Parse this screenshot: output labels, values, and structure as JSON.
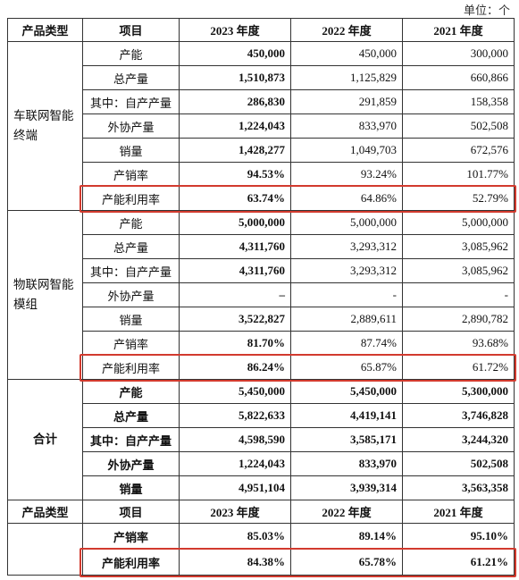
{
  "unit": "单位：个",
  "header": [
    "产品类型",
    "项目",
    "2023 年度",
    "2022 年度",
    "2021 年度"
  ],
  "groups": [
    {
      "label": "车联网智能终端",
      "rows": [
        [
          "产能",
          "450,000",
          "450,000",
          "300,000"
        ],
        [
          "总产量",
          "1,510,873",
          "1,125,829",
          "660,866"
        ],
        [
          "其中：自产产量",
          "286,830",
          "291,859",
          "158,358"
        ],
        [
          "外协产量",
          "1,224,043",
          "833,970",
          "502,508"
        ],
        [
          "销量",
          "1,428,277",
          "1,049,703",
          "672,576"
        ],
        [
          "产销率",
          "94.53%",
          "93.24%",
          "101.77%"
        ],
        [
          "产能利用率",
          "63.74%",
          "64.86%",
          "52.79%"
        ]
      ]
    },
    {
      "label": "物联网智能模组",
      "rows": [
        [
          "产能",
          "5,000,000",
          "5,000,000",
          "5,000,000"
        ],
        [
          "总产量",
          "4,311,760",
          "3,293,312",
          "3,085,962"
        ],
        [
          "其中：自产产量",
          "4,311,760",
          "3,293,312",
          "3,085,962"
        ],
        [
          "外协产量",
          "–",
          "-",
          "-"
        ],
        [
          "销量",
          "3,522,827",
          "2,889,611",
          "2,890,782"
        ],
        [
          "产销率",
          "81.70%",
          "87.74%",
          "93.68%"
        ],
        [
          "产能利用率",
          "86.24%",
          "65.87%",
          "61.72%"
        ]
      ]
    },
    {
      "label": "合计",
      "rows": [
        [
          "产能",
          "5,450,000",
          "5,450,000",
          "5,300,000"
        ],
        [
          "总产量",
          "5,822,633",
          "4,419,141",
          "3,746,828"
        ],
        [
          "其中：自产产量",
          "4,598,590",
          "3,585,171",
          "3,244,320"
        ],
        [
          "外协产量",
          "1,224,043",
          "833,970",
          "502,508"
        ],
        [
          "销量",
          "4,951,104",
          "3,939,314",
          "3,563,358"
        ]
      ]
    }
  ],
  "header2": [
    "产品类型",
    "项目",
    "2023 年度",
    "2022 年度",
    "2021 年度"
  ],
  "summary_rows": [
    [
      "产销率",
      "85.03%",
      "89.14%",
      "95.10%"
    ],
    [
      "产能利用率",
      "84.38%",
      "65.78%",
      "61.21%"
    ]
  ]
}
